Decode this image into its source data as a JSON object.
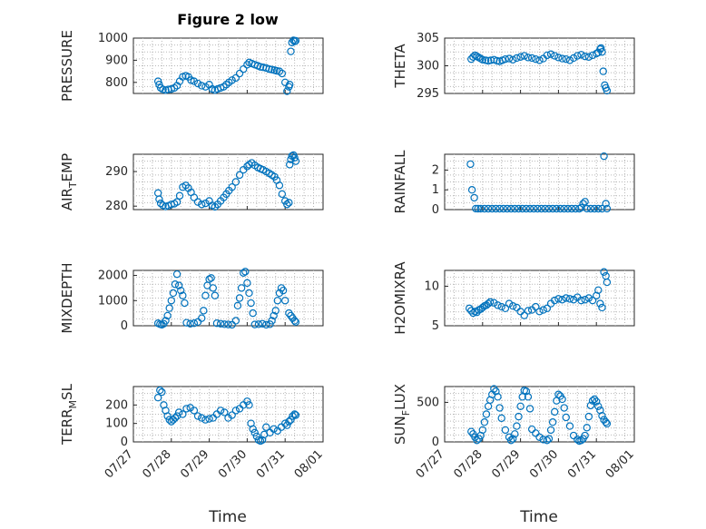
{
  "figure": {
    "title": "Figure 2 low",
    "xlabel": "Time",
    "marker_color": "#0072BD"
  },
  "chart_data": [
    {
      "type": "scatter",
      "ylabel": "PRESSURE",
      "ylim": [
        750,
        1000
      ],
      "yticks": [
        "800",
        "900",
        "1000"
      ],
      "xticks": [
        "07/27",
        "07/28",
        "07/29",
        "07/30",
        "07/31",
        "08/01"
      ],
      "grid": true,
      "x": [
        0.65,
        0.68,
        0.72,
        0.78,
        0.85,
        0.92,
        1.0,
        1.08,
        1.15,
        1.22,
        1.3,
        1.38,
        1.45,
        1.52,
        1.6,
        1.7,
        1.8,
        1.9,
        2.0,
        2.08,
        2.15,
        2.22,
        2.3,
        2.38,
        2.45,
        2.52,
        2.6,
        2.7,
        2.8,
        2.9,
        3.0,
        3.05,
        3.12,
        3.2,
        3.28,
        3.35,
        3.42,
        3.5,
        3.58,
        3.65,
        3.72,
        3.78,
        3.85,
        3.92,
        4.0,
        4.05,
        4.1,
        4.12,
        4.15,
        4.18,
        4.22,
        4.25,
        4.28
      ],
      "y": [
        805,
        790,
        775,
        768,
        765,
        768,
        770,
        775,
        785,
        805,
        825,
        830,
        825,
        810,
        805,
        795,
        785,
        780,
        790,
        770,
        765,
        770,
        775,
        780,
        790,
        800,
        810,
        820,
        840,
        860,
        880,
        890,
        885,
        880,
        875,
        870,
        868,
        865,
        860,
        858,
        855,
        852,
        850,
        840,
        800,
        760,
        780,
        790,
        940,
        980,
        990,
        985,
        988
      ]
    },
    {
      "type": "scatter",
      "ylabel": "THETA",
      "ylim": [
        295,
        305
      ],
      "yticks": [
        "295",
        "300",
        "305"
      ],
      "xticks": [
        "07/27",
        "07/28",
        "07/29",
        "07/30",
        "07/31",
        "08/01"
      ],
      "grid": true,
      "x": [
        0.7,
        0.75,
        0.8,
        0.85,
        0.9,
        0.95,
        1.0,
        1.08,
        1.15,
        1.22,
        1.3,
        1.38,
        1.45,
        1.52,
        1.6,
        1.7,
        1.8,
        1.9,
        2.0,
        2.1,
        2.2,
        2.3,
        2.4,
        2.5,
        2.6,
        2.7,
        2.8,
        2.9,
        3.0,
        3.1,
        3.2,
        3.3,
        3.4,
        3.5,
        3.6,
        3.7,
        3.8,
        3.9,
        4.0,
        4.05,
        4.1,
        4.12,
        4.15,
        4.18,
        4.22,
        4.25,
        4.28
      ],
      "y": [
        301.2,
        301.6,
        301.9,
        301.7,
        301.5,
        301.3,
        301.1,
        301.0,
        300.9,
        301.0,
        301.1,
        300.9,
        300.8,
        301.0,
        301.2,
        301.3,
        301.1,
        301.4,
        301.6,
        301.8,
        301.5,
        301.4,
        301.2,
        301.0,
        301.3,
        301.9,
        302.1,
        301.8,
        301.5,
        301.3,
        301.2,
        301.0,
        301.4,
        301.8,
        302.0,
        301.7,
        301.6,
        301.9,
        302.2,
        302.4,
        303.0,
        303.2,
        302.5,
        299.0,
        296.5,
        296.0,
        295.5
      ]
    },
    {
      "type": "scatter",
      "ylabel": "AIR_TEMP",
      "ylim": [
        279,
        295
      ],
      "yticks": [
        "280",
        "290"
      ],
      "xticks": [
        "07/27",
        "07/28",
        "07/29",
        "07/30",
        "07/31",
        "08/01"
      ],
      "grid": true,
      "x": [
        0.65,
        0.68,
        0.72,
        0.78,
        0.85,
        0.92,
        1.0,
        1.08,
        1.15,
        1.22,
        1.3,
        1.38,
        1.45,
        1.52,
        1.6,
        1.7,
        1.8,
        1.9,
        2.0,
        2.08,
        2.15,
        2.22,
        2.3,
        2.38,
        2.45,
        2.52,
        2.6,
        2.7,
        2.8,
        2.9,
        3.0,
        3.05,
        3.12,
        3.2,
        3.28,
        3.35,
        3.42,
        3.5,
        3.58,
        3.65,
        3.72,
        3.78,
        3.85,
        3.92,
        4.0,
        4.05,
        4.1,
        4.12,
        4.15,
        4.18,
        4.22,
        4.25,
        4.28
      ],
      "y": [
        283.8,
        282.0,
        280.8,
        280.2,
        279.9,
        280.1,
        280.5,
        280.7,
        281.2,
        283.0,
        285.5,
        286.0,
        285.2,
        284.0,
        282.5,
        281.2,
        280.5,
        280.8,
        281.5,
        280.2,
        279.8,
        280.5,
        281.5,
        282.5,
        283.5,
        284.5,
        285.5,
        287.0,
        289.0,
        290.5,
        291.5,
        292.0,
        292.5,
        291.8,
        291.2,
        290.8,
        290.5,
        290.0,
        289.5,
        289.0,
        288.5,
        287.5,
        286.0,
        283.5,
        281.5,
        280.5,
        281.0,
        292.0,
        293.5,
        294.5,
        295.0,
        294.0,
        293.0
      ]
    },
    {
      "type": "scatter",
      "ylabel": "RAINFALL",
      "ylim": [
        0,
        2.8
      ],
      "yticks": [
        "0",
        "1",
        "2"
      ],
      "xticks": [
        "07/27",
        "07/28",
        "07/29",
        "07/30",
        "07/31",
        "08/01"
      ],
      "grid": true,
      "x": [
        0.68,
        0.72,
        0.78,
        0.82,
        0.88,
        0.95,
        1.05,
        1.15,
        1.25,
        1.35,
        1.45,
        1.55,
        1.65,
        1.75,
        1.85,
        1.95,
        2.05,
        2.15,
        2.25,
        2.35,
        2.45,
        2.55,
        2.65,
        2.75,
        2.85,
        2.95,
        3.05,
        3.15,
        3.25,
        3.35,
        3.45,
        3.55,
        3.6,
        3.65,
        3.7,
        3.75,
        3.85,
        3.95,
        4.05,
        4.15,
        4.2,
        4.25,
        4.28
      ],
      "y": [
        2.3,
        1.0,
        0.6,
        0.05,
        0.0,
        0.0,
        0.0,
        0.0,
        0.0,
        0.0,
        0.0,
        0.0,
        0.0,
        0.0,
        0.0,
        0.0,
        0.0,
        0.0,
        0.0,
        0.0,
        0.0,
        0.0,
        0.0,
        0.0,
        0.0,
        0.0,
        0.0,
        0.0,
        0.0,
        0.0,
        0.0,
        0.0,
        0.1,
        0.3,
        0.4,
        0.05,
        0.0,
        0.0,
        0.0,
        0.0,
        2.7,
        0.3,
        0.05
      ]
    },
    {
      "type": "scatter",
      "ylabel": "MIXDEPTH",
      "ylim": [
        0,
        2200
      ],
      "yticks": [
        "0",
        "1000",
        "2000"
      ],
      "xticks": [
        "07/27",
        "07/28",
        "07/29",
        "07/30",
        "07/31",
        "08/01"
      ],
      "grid": true,
      "x": [
        0.65,
        0.7,
        0.75,
        0.8,
        0.85,
        0.9,
        0.95,
        1.0,
        1.05,
        1.1,
        1.15,
        1.2,
        1.25,
        1.3,
        1.35,
        1.4,
        1.5,
        1.6,
        1.7,
        1.8,
        1.85,
        1.9,
        1.95,
        2.0,
        2.05,
        2.1,
        2.15,
        2.2,
        2.3,
        2.4,
        2.5,
        2.6,
        2.7,
        2.75,
        2.8,
        2.85,
        2.9,
        2.95,
        3.0,
        3.05,
        3.1,
        3.15,
        3.2,
        3.3,
        3.4,
        3.5,
        3.6,
        3.65,
        3.7,
        3.75,
        3.8,
        3.85,
        3.9,
        3.95,
        4.0,
        4.1,
        4.15,
        4.2,
        4.25,
        4.28
      ],
      "y": [
        100,
        60,
        40,
        80,
        200,
        400,
        700,
        1000,
        1300,
        1650,
        2050,
        1600,
        1400,
        1200,
        900,
        120,
        80,
        100,
        150,
        300,
        600,
        1200,
        1600,
        1850,
        1900,
        1500,
        1200,
        100,
        80,
        60,
        50,
        40,
        200,
        800,
        1100,
        1500,
        2100,
        2150,
        1700,
        1300,
        900,
        500,
        50,
        60,
        80,
        40,
        60,
        200,
        400,
        600,
        1000,
        1300,
        1500,
        1400,
        1000,
        500,
        400,
        300,
        200,
        150
      ]
    },
    {
      "type": "scatter",
      "ylabel": "H2OMIXRA",
      "ylim": [
        5,
        12
      ],
      "yticks": [
        "5",
        "10"
      ],
      "xticks": [
        "07/27",
        "07/28",
        "07/29",
        "07/30",
        "07/31",
        "08/01"
      ],
      "grid": true,
      "x": [
        0.65,
        0.7,
        0.75,
        0.8,
        0.85,
        0.9,
        0.95,
        1.0,
        1.05,
        1.1,
        1.15,
        1.2,
        1.3,
        1.4,
        1.5,
        1.6,
        1.7,
        1.8,
        1.9,
        2.0,
        2.1,
        2.2,
        2.3,
        2.4,
        2.5,
        2.6,
        2.7,
        2.8,
        2.9,
        3.0,
        3.1,
        3.2,
        3.3,
        3.4,
        3.5,
        3.6,
        3.7,
        3.8,
        3.9,
        4.0,
        4.05,
        4.1,
        4.15,
        4.2,
        4.25,
        4.28
      ],
      "y": [
        7.2,
        6.9,
        6.6,
        6.8,
        6.7,
        7.0,
        7.1,
        7.3,
        7.5,
        7.6,
        7.8,
        8.0,
        7.9,
        7.6,
        7.4,
        7.2,
        7.8,
        7.5,
        7.3,
        6.8,
        6.3,
        6.9,
        7.0,
        7.4,
        6.8,
        7.0,
        7.2,
        7.8,
        8.2,
        8.4,
        8.3,
        8.5,
        8.4,
        8.3,
        8.6,
        8.2,
        8.3,
        8.5,
        8.2,
        8.8,
        9.5,
        7.8,
        7.3,
        11.8,
        11.3,
        10.5
      ]
    },
    {
      "type": "scatter",
      "ylabel": "TERR_MSL",
      "ylim": [
        0,
        300
      ],
      "yticks": [
        "0",
        "100",
        "200"
      ],
      "xticks": [
        "07/27",
        "07/28",
        "07/29",
        "07/30",
        "07/31",
        "08/01"
      ],
      "grid": true,
      "x": [
        0.65,
        0.7,
        0.75,
        0.8,
        0.85,
        0.9,
        0.95,
        1.0,
        1.05,
        1.1,
        1.15,
        1.2,
        1.3,
        1.4,
        1.5,
        1.6,
        1.7,
        1.8,
        1.9,
        2.0,
        2.1,
        2.2,
        2.3,
        2.4,
        2.5,
        2.6,
        2.7,
        2.8,
        2.9,
        3.0,
        3.05,
        3.1,
        3.15,
        3.2,
        3.25,
        3.3,
        3.35,
        3.4,
        3.45,
        3.5,
        3.6,
        3.7,
        3.8,
        3.9,
        4.0,
        4.05,
        4.1,
        4.15,
        4.2,
        4.25,
        4.28
      ],
      "y": [
        240,
        280,
        270,
        200,
        170,
        140,
        120,
        110,
        120,
        130,
        140,
        160,
        150,
        180,
        185,
        170,
        140,
        130,
        120,
        125,
        130,
        150,
        170,
        160,
        130,
        145,
        170,
        180,
        200,
        220,
        200,
        100,
        70,
        50,
        30,
        10,
        5,
        10,
        40,
        80,
        50,
        70,
        60,
        80,
        100,
        90,
        110,
        120,
        140,
        150,
        145
      ]
    },
    {
      "type": "scatter",
      "ylabel": "SUN_FLUX",
      "ylim": [
        0,
        700
      ],
      "yticks": [
        "0",
        "500"
      ],
      "xticks": [
        "07/27",
        "07/28",
        "07/29",
        "07/30",
        "07/31",
        "08/01"
      ],
      "grid": true,
      "x": [
        0.7,
        0.75,
        0.8,
        0.85,
        0.9,
        0.95,
        1.0,
        1.05,
        1.1,
        1.15,
        1.2,
        1.25,
        1.3,
        1.35,
        1.4,
        1.45,
        1.5,
        1.6,
        1.7,
        1.75,
        1.8,
        1.85,
        1.9,
        1.95,
        2.0,
        2.05,
        2.1,
        2.15,
        2.2,
        2.25,
        2.3,
        2.4,
        2.5,
        2.6,
        2.7,
        2.75,
        2.8,
        2.85,
        2.9,
        2.95,
        3.0,
        3.05,
        3.1,
        3.15,
        3.2,
        3.3,
        3.4,
        3.5,
        3.55,
        3.6,
        3.65,
        3.7,
        3.75,
        3.8,
        3.85,
        3.9,
        3.95,
        4.0,
        4.05,
        4.1,
        4.15,
        4.2,
        4.25,
        4.28
      ],
      "y": [
        130,
        100,
        60,
        20,
        40,
        80,
        150,
        250,
        350,
        450,
        530,
        600,
        670,
        640,
        570,
        430,
        300,
        150,
        60,
        20,
        40,
        100,
        200,
        320,
        450,
        570,
        650,
        640,
        570,
        420,
        160,
        110,
        60,
        30,
        20,
        40,
        150,
        250,
        380,
        520,
        600,
        580,
        540,
        430,
        310,
        200,
        80,
        30,
        10,
        20,
        40,
        80,
        180,
        320,
        460,
        520,
        540,
        510,
        450,
        400,
        330,
        280,
        250,
        230
      ]
    }
  ]
}
